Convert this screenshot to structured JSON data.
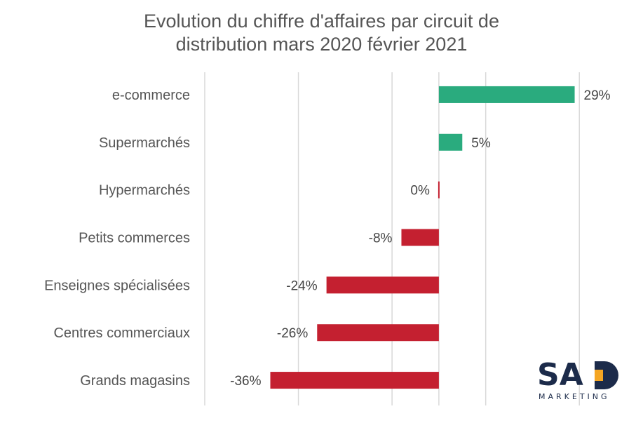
{
  "chart_data": {
    "type": "bar",
    "orientation": "horizontal",
    "title": "Evolution du chiffre d'affaires par circuit de distribution mars 2020 février 2021",
    "title_lines": [
      "Evolution du chiffre d'affaires par circuit de",
      "distribution mars 2020 février 2021"
    ],
    "categories": [
      "e-commerce",
      "Supermarchés",
      "Hypermarchés",
      "Petits commerces",
      "Enseignes spécialisées",
      "Centres commerciaux",
      "Grands magasins"
    ],
    "values": [
      29,
      5,
      0,
      -8,
      -24,
      -26,
      -36
    ],
    "value_labels": [
      "29%",
      "5%",
      "0%",
      "-8%",
      "-24%",
      "-26%",
      "-36%"
    ],
    "xlim": [
      -50,
      40
    ],
    "grid_positions": [
      -50,
      -30,
      -10,
      0,
      10,
      30
    ],
    "grid": true,
    "positive_color": "#2aab7e",
    "negative_color": "#c42030",
    "grid_color": "#d9d9d9"
  },
  "logo": {
    "letters": "SAD",
    "sub": "MARKETING",
    "accent_color": "#f5a623",
    "text_color": "#1c2b4a"
  }
}
